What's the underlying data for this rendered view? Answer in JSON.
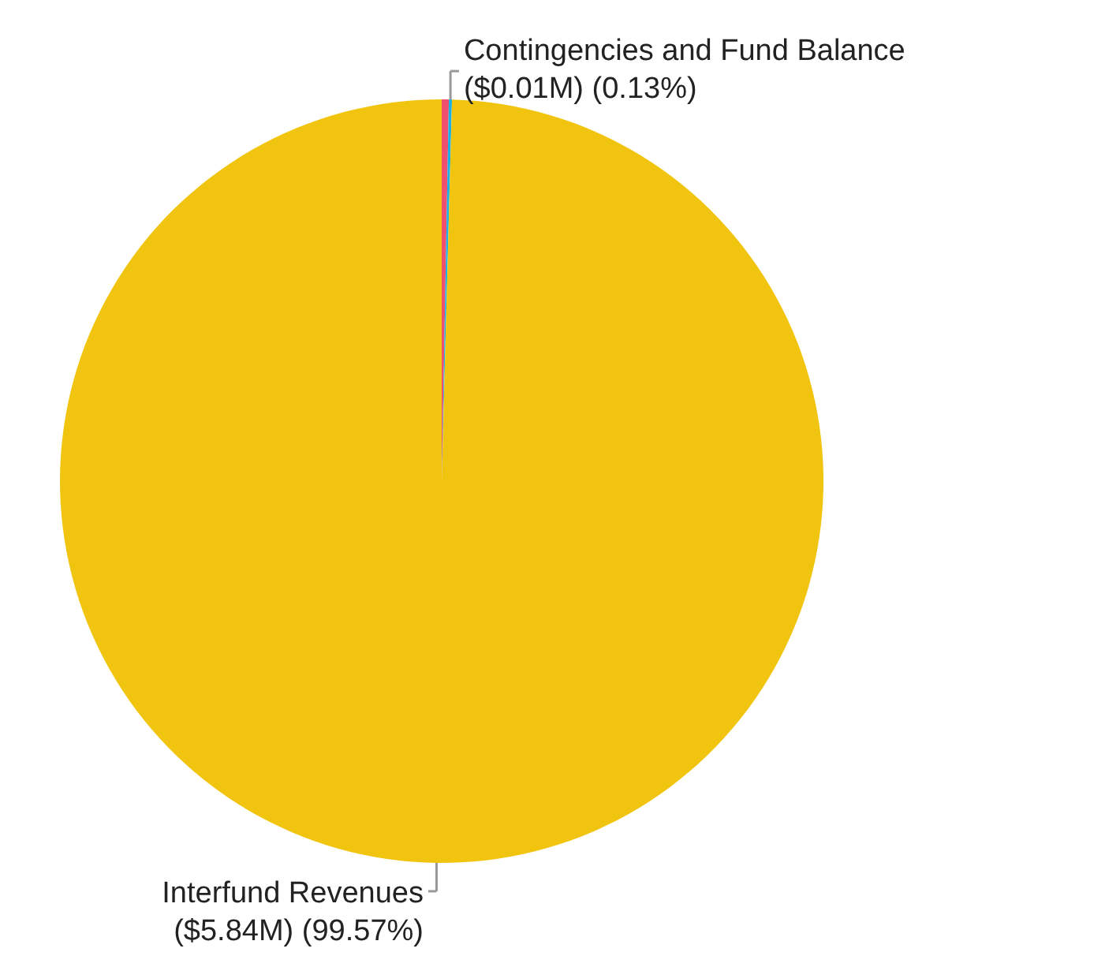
{
  "chart_data": {
    "type": "pie",
    "categories": [
      null,
      "Contingencies and Fund Balance",
      "Interfund Revenues"
    ],
    "values": [
      0.3,
      0.13,
      99.57
    ],
    "colors": [
      "#f0506e",
      "#1ab1e6",
      "#f1c40f"
    ],
    "value_labels": [
      null,
      "($0.01M) (0.13%)",
      "($5.84M) (99.57%)"
    ]
  }
}
